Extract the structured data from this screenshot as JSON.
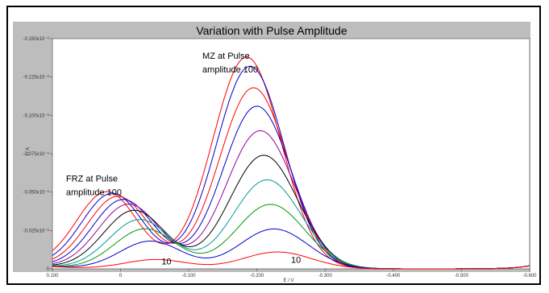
{
  "chart_data": {
    "type": "line",
    "title": "Variation with Pulse Amplitude",
    "xlabel": "E / V",
    "ylabel": "I / A",
    "xlim": [
      0.1,
      -0.6
    ],
    "ylim": [
      0,
      -0.15
    ],
    "xticks": [
      {
        "v": 0.1,
        "label": "0.100"
      },
      {
        "v": 0.0,
        "label": "0"
      },
      {
        "v": -0.1,
        "label": "-0.100"
      },
      {
        "v": -0.2,
        "label": "-0.200"
      },
      {
        "v": -0.3,
        "label": "-0.300"
      },
      {
        "v": -0.4,
        "label": "-0.400"
      },
      {
        "v": -0.5,
        "label": "-0.500"
      },
      {
        "v": -0.6,
        "label": "-0.600"
      }
    ],
    "yticks": [
      {
        "v": 0,
        "label": "0"
      },
      {
        "v": -0.025,
        "label": "-0.025x10⁻⁶"
      },
      {
        "v": -0.05,
        "label": "-0.050x10⁻⁶"
      },
      {
        "v": -0.075,
        "label": "-0.075x10⁻⁶"
      },
      {
        "v": -0.1,
        "label": "-0.100x10⁻⁶"
      },
      {
        "v": -0.125,
        "label": "-0.125x10⁻⁶"
      },
      {
        "v": -0.15,
        "label": "-0.150x10⁻⁶"
      }
    ],
    "annotations": [
      {
        "text": "MZ at Pulse",
        "x": -0.12,
        "y": -0.137
      },
      {
        "text": "amplitude 100",
        "x": -0.12,
        "y": -0.128
      },
      {
        "text": "FRZ at Pulse",
        "x": 0.08,
        "y": -0.057
      },
      {
        "text": "amplitude 100",
        "x": 0.08,
        "y": -0.048
      },
      {
        "text": "10",
        "x": -0.06,
        "y": -0.003
      },
      {
        "text": "10",
        "x": -0.25,
        "y": -0.004
      }
    ],
    "series": [
      {
        "color": "#ff0000",
        "frz": [
          -0.05,
          0.02
        ],
        "mz": [
          -0.138,
          -0.185
        ]
      },
      {
        "color": "#0000cc",
        "frz": [
          -0.049,
          0.012
        ],
        "mz": [
          -0.132,
          -0.19
        ]
      },
      {
        "color": "#ff0000",
        "frz": [
          -0.047,
          0.004
        ],
        "mz": [
          -0.118,
          -0.195
        ]
      },
      {
        "color": "#0000cc",
        "frz": [
          -0.045,
          -0.004
        ],
        "mz": [
          -0.106,
          -0.2
        ]
      },
      {
        "color": "#990099",
        "frz": [
          -0.042,
          -0.012
        ],
        "mz": [
          -0.09,
          -0.205
        ]
      },
      {
        "color": "#000000",
        "frz": [
          -0.038,
          -0.02
        ],
        "mz": [
          -0.074,
          -0.21
        ]
      },
      {
        "color": "#009999",
        "frz": [
          -0.032,
          -0.028
        ],
        "mz": [
          -0.058,
          -0.215
        ]
      },
      {
        "color": "#009900",
        "frz": [
          -0.026,
          -0.036
        ],
        "mz": [
          -0.042,
          -0.22
        ]
      },
      {
        "color": "#0000cc",
        "frz": [
          -0.018,
          -0.044
        ],
        "mz": [
          -0.026,
          -0.225
        ]
      },
      {
        "color": "#ff0000",
        "frz": [
          -0.006,
          -0.052
        ],
        "mz": [
          -0.011,
          -0.23
        ]
      }
    ]
  }
}
